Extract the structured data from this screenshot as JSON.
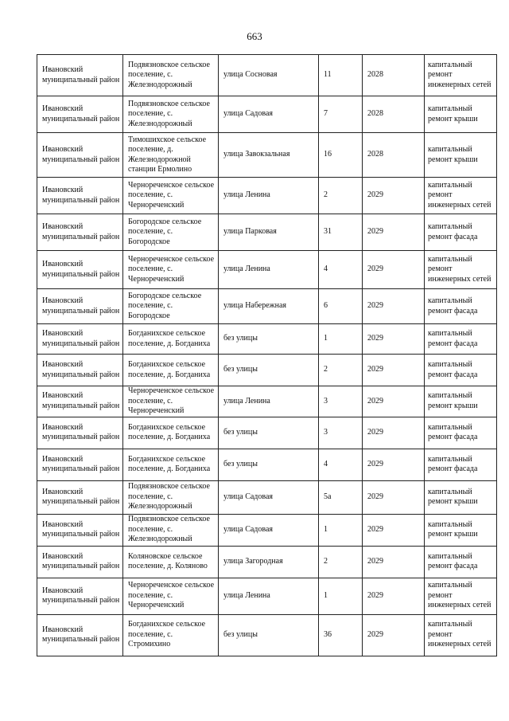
{
  "page_number": "663",
  "rows": [
    [
      "Ивановский муниципальный район",
      "Подвязновское сельское поселение, с. Железнодорожный",
      "улица Сосновая",
      "11",
      "2028",
      "капитальный ремонт инженерных сетей"
    ],
    [
      "Ивановский муниципальный район",
      "Подвязновское сельское поселение, с. Железнодорожный",
      "улица Садовая",
      "7",
      "2028",
      "капитальный ремонт крыши"
    ],
    [
      "Ивановский муниципальный район",
      "Тимошихское сельское поселение, д. Железнодорожной станции Ермолино",
      "улица Завокзальная",
      "16",
      "2028",
      "капитальный ремонт крыши"
    ],
    [
      "Ивановский муниципальный район",
      "Чернореченское сельское поселение, с. Чернореченский",
      "улица Ленина",
      "2",
      "2029",
      "капитальный ремонт инженерных сетей"
    ],
    [
      "Ивановский муниципальный район",
      "Богородское сельское поселение, с. Богородское",
      "улица Парковая",
      "31",
      "2029",
      "капитальный ремонт фасада"
    ],
    [
      "Ивановский муниципальный район",
      "Чернореченское сельское поселение, с. Чернореченский",
      "улица Ленина",
      "4",
      "2029",
      "капитальный ремонт инженерных сетей"
    ],
    [
      "Ивановский муниципальный район",
      "Богородское сельское поселение, с. Богородское",
      "улица Набережная",
      "6",
      "2029",
      "капитальный ремонт фасада"
    ],
    [
      "Ивановский муниципальный район",
      "Богданихское сельское поселение, д. Богданиха",
      "без улицы",
      "1",
      "2029",
      "капитальный ремонт фасада"
    ],
    [
      "Ивановский муниципальный район",
      "Богданихское сельское поселение, д. Богданиха",
      "без улицы",
      "2",
      "2029",
      "капитальный ремонт фасада"
    ],
    [
      "Ивановский муниципальный район",
      "Чернореченское сельское поселение, с. Чернореченский",
      "улица Ленина",
      "3",
      "2029",
      "капитальный ремонт крыши"
    ],
    [
      "Ивановский муниципальный район",
      "Богданихское сельское поселение, д. Богданиха",
      "без улицы",
      "3",
      "2029",
      "капитальный ремонт фасада"
    ],
    [
      "Ивановский муниципальный район",
      "Богданихское сельское поселение, д. Богданиха",
      "без улицы",
      "4",
      "2029",
      "капитальный ремонт фасада"
    ],
    [
      "Ивановский муниципальный район",
      "Подвязновское сельское поселение, с. Железнодорожный",
      "улица Садовая",
      "5а",
      "2029",
      "капитальный ремонт крыши"
    ],
    [
      "Ивановский муниципальный район",
      "Подвязновское сельское поселение, с. Железнодорожный",
      "улица Садовая",
      "1",
      "2029",
      "капитальный ремонт крыши"
    ],
    [
      "Ивановский муниципальный район",
      "Коляновское сельское поселение, д. Коляново",
      "улица Загородная",
      "2",
      "2029",
      "капитальный ремонт фасада"
    ],
    [
      "Ивановский муниципальный район",
      "Чернореченское сельское поселение, с. Чернореченский",
      "улица Ленина",
      "1",
      "2029",
      "капитальный ремонт инженерных сетей"
    ],
    [
      "Ивановский муниципальный район",
      "Богданихское сельское поселение, с. Стромихино",
      "без улицы",
      "36",
      "2029",
      "капитальный ремонт инженерных сетей"
    ]
  ]
}
